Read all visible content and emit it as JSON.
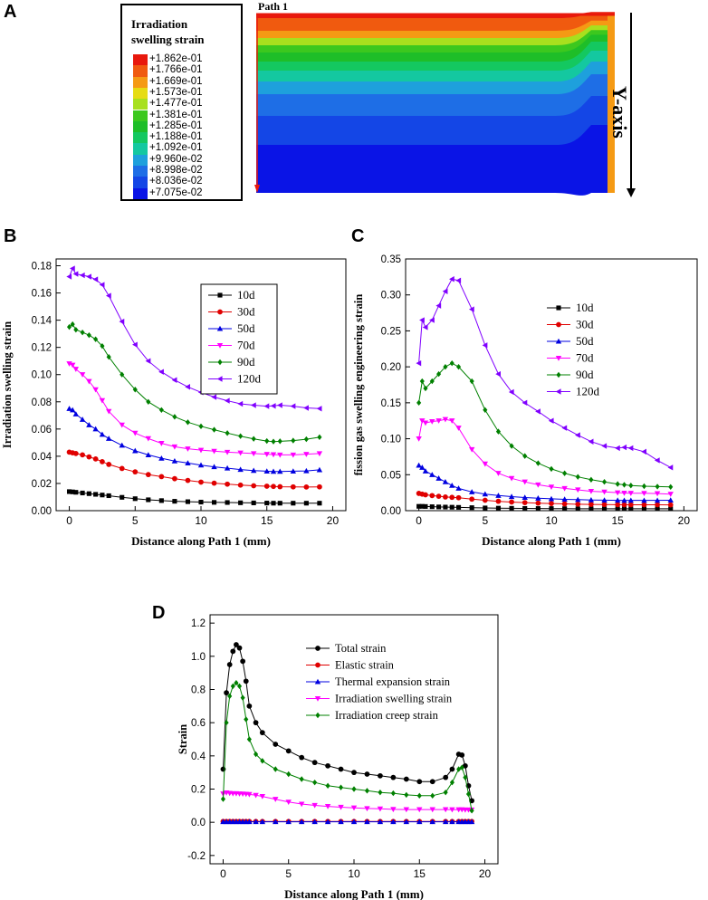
{
  "panels": {
    "a": "A",
    "b": "B",
    "c": "C",
    "d": "D"
  },
  "panelA": {
    "legend_title_line1": "Irradiation",
    "legend_title_line2": "swelling strain",
    "legend_values": [
      "+1.862e-01",
      "+1.766e-01",
      "+1.669e-01",
      "+1.573e-01",
      "+1.477e-01",
      "+1.381e-01",
      "+1.285e-01",
      "+1.188e-01",
      "+1.092e-01",
      "+9.960e-02",
      "+8.998e-02",
      "+8.036e-02",
      "+7.075e-02"
    ],
    "legend_colors": [
      "#e8180c",
      "#f05a0f",
      "#f59a14",
      "#e6dc14",
      "#a8e01e",
      "#3cc81e",
      "#1ebe28",
      "#14c860",
      "#14c8a0",
      "#1ea0dc",
      "#1e6ee6",
      "#1446e6",
      "#0a14e6"
    ],
    "path_label": "Path 1",
    "axis_label": "Y-axis"
  },
  "chart_data": [
    {
      "id": "B",
      "type": "line",
      "xlabel": "Distance along Path 1 (mm)",
      "ylabel": "Irradiation swelling strain",
      "xlim": [
        -1,
        21
      ],
      "ylim": [
        0,
        0.185
      ],
      "xticks": [
        0,
        5,
        10,
        15,
        20
      ],
      "yticks": [
        0.0,
        0.02,
        0.04,
        0.06,
        0.08,
        0.1,
        0.12,
        0.14,
        0.16,
        0.18
      ],
      "ytick_labels": [
        "0.00",
        "0.02",
        "0.04",
        "0.06",
        "0.08",
        "0.10",
        "0.12",
        "0.14",
        "0.16",
        "0.18"
      ],
      "x": [
        0,
        0.25,
        0.5,
        1,
        1.5,
        2,
        2.5,
        3,
        4,
        5,
        6,
        7,
        8,
        9,
        10,
        11,
        12,
        13,
        14,
        15,
        15.5,
        16,
        17,
        18,
        19
      ],
      "series": [
        {
          "name": "10d",
          "color": "#000000",
          "marker": "square",
          "values": [
            0.014,
            0.0138,
            0.0135,
            0.013,
            0.0125,
            0.012,
            0.0115,
            0.011,
            0.0098,
            0.0088,
            0.008,
            0.0074,
            0.0069,
            0.0066,
            0.0063,
            0.0061,
            0.006,
            0.0058,
            0.0057,
            0.0056,
            0.0055,
            0.0055,
            0.0055,
            0.0055,
            0.0055
          ]
        },
        {
          "name": "30d",
          "color": "#e00000",
          "marker": "circle",
          "values": [
            0.043,
            0.0425,
            0.042,
            0.041,
            0.0395,
            0.038,
            0.036,
            0.034,
            0.031,
            0.0285,
            0.0265,
            0.025,
            0.0235,
            0.0222,
            0.021,
            0.0202,
            0.0195,
            0.0188,
            0.0183,
            0.018,
            0.0178,
            0.0176,
            0.0175,
            0.0174,
            0.0175
          ]
        },
        {
          "name": "50d",
          "color": "#0000e0",
          "marker": "triangle-up",
          "values": [
            0.075,
            0.074,
            0.071,
            0.067,
            0.063,
            0.06,
            0.056,
            0.053,
            0.048,
            0.044,
            0.041,
            0.0385,
            0.0365,
            0.035,
            0.0335,
            0.0322,
            0.0312,
            0.0302,
            0.0295,
            0.029,
            0.0288,
            0.0288,
            0.029,
            0.0292,
            0.03
          ]
        },
        {
          "name": "70d",
          "color": "#ff00ff",
          "marker": "triangle-down",
          "values": [
            0.108,
            0.107,
            0.104,
            0.1,
            0.095,
            0.089,
            0.081,
            0.073,
            0.063,
            0.057,
            0.053,
            0.0495,
            0.047,
            0.0455,
            0.0445,
            0.0437,
            0.043,
            0.0425,
            0.042,
            0.0415,
            0.0412,
            0.041,
            0.041,
            0.0415,
            0.042
          ]
        },
        {
          "name": "90d",
          "color": "#008000",
          "marker": "diamond",
          "values": [
            0.135,
            0.137,
            0.133,
            0.131,
            0.129,
            0.126,
            0.121,
            0.113,
            0.1,
            0.089,
            0.08,
            0.074,
            0.069,
            0.065,
            0.062,
            0.0595,
            0.057,
            0.0548,
            0.0528,
            0.0512,
            0.0508,
            0.051,
            0.0515,
            0.0525,
            0.054
          ]
        },
        {
          "name": "120d",
          "color": "#8000ff",
          "marker": "triangle-left",
          "values": [
            0.172,
            0.178,
            0.174,
            0.173,
            0.172,
            0.17,
            0.166,
            0.158,
            0.139,
            0.122,
            0.11,
            0.102,
            0.096,
            0.091,
            0.087,
            0.0835,
            0.0808,
            0.0785,
            0.0775,
            0.0768,
            0.077,
            0.0775,
            0.0768,
            0.0755,
            0.075
          ]
        }
      ]
    },
    {
      "id": "C",
      "type": "line",
      "xlabel": "Distance along Path 1 (mm)",
      "ylabel": "fission gas swelling engineering strain",
      "xlim": [
        -1,
        21
      ],
      "ylim": [
        0,
        0.35
      ],
      "xticks": [
        0,
        5,
        10,
        15,
        20
      ],
      "yticks": [
        0.0,
        0.05,
        0.1,
        0.15,
        0.2,
        0.25,
        0.3,
        0.35
      ],
      "ytick_labels": [
        "0.00",
        "0.05",
        "0.10",
        "0.15",
        "0.20",
        "0.25",
        "0.30",
        "0.35"
      ],
      "x": [
        0,
        0.25,
        0.5,
        1,
        1.5,
        2,
        2.5,
        3,
        4,
        5,
        6,
        7,
        8,
        9,
        10,
        11,
        12,
        13,
        14,
        15,
        15.5,
        16,
        17,
        18,
        19
      ],
      "series": [
        {
          "name": "10d",
          "color": "#000000",
          "marker": "square",
          "values": [
            0.006,
            0.006,
            0.0058,
            0.0055,
            0.0052,
            0.005,
            0.0048,
            0.0046,
            0.0042,
            0.0038,
            0.0035,
            0.0033,
            0.0031,
            0.003,
            0.0029,
            0.0028,
            0.0027,
            0.0027,
            0.0026,
            0.0026,
            0.0026,
            0.0026,
            0.0026,
            0.0026,
            0.0026
          ]
        },
        {
          "name": "30d",
          "color": "#e00000",
          "marker": "circle",
          "values": [
            0.024,
            0.023,
            0.022,
            0.021,
            0.02,
            0.019,
            0.0185,
            0.018,
            0.016,
            0.0145,
            0.013,
            0.012,
            0.0112,
            0.0105,
            0.0099,
            0.0094,
            0.009,
            0.0087,
            0.0085,
            0.0083,
            0.0082,
            0.0082,
            0.0082,
            0.0082,
            0.008
          ]
        },
        {
          "name": "50d",
          "color": "#0000e0",
          "marker": "triangle-up",
          "values": [
            0.063,
            0.06,
            0.055,
            0.05,
            0.045,
            0.04,
            0.035,
            0.031,
            0.026,
            0.023,
            0.021,
            0.0195,
            0.0183,
            0.0173,
            0.0165,
            0.0158,
            0.0153,
            0.0149,
            0.0146,
            0.0144,
            0.0143,
            0.0143,
            0.0143,
            0.0143,
            0.0145
          ]
        },
        {
          "name": "70d",
          "color": "#ff00ff",
          "marker": "triangle-down",
          "values": [
            0.1,
            0.125,
            0.122,
            0.124,
            0.125,
            0.127,
            0.125,
            0.115,
            0.085,
            0.065,
            0.052,
            0.045,
            0.04,
            0.036,
            0.033,
            0.031,
            0.029,
            0.027,
            0.026,
            0.025,
            0.0245,
            0.0243,
            0.0242,
            0.0238,
            0.023
          ]
        },
        {
          "name": "90d",
          "color": "#008000",
          "marker": "diamond",
          "values": [
            0.15,
            0.18,
            0.17,
            0.18,
            0.19,
            0.2,
            0.205,
            0.2,
            0.18,
            0.14,
            0.11,
            0.09,
            0.076,
            0.066,
            0.058,
            0.052,
            0.047,
            0.043,
            0.04,
            0.037,
            0.036,
            0.035,
            0.034,
            0.0335,
            0.033
          ]
        },
        {
          "name": "120d",
          "color": "#8000ff",
          "marker": "triangle-left",
          "values": [
            0.205,
            0.265,
            0.255,
            0.265,
            0.285,
            0.305,
            0.322,
            0.32,
            0.28,
            0.23,
            0.19,
            0.165,
            0.15,
            0.138,
            0.125,
            0.115,
            0.105,
            0.096,
            0.09,
            0.087,
            0.088,
            0.087,
            0.082,
            0.07,
            0.06
          ]
        }
      ]
    },
    {
      "id": "D",
      "type": "line",
      "xlabel": "Distance along Path 1 (mm)",
      "ylabel": "Strain",
      "xlim": [
        -1,
        21
      ],
      "ylim": [
        -0.25,
        1.25
      ],
      "xticks": [
        0,
        5,
        10,
        15,
        20
      ],
      "yticks": [
        -0.2,
        0.0,
        0.2,
        0.4,
        0.6,
        0.8,
        1.0,
        1.2
      ],
      "ytick_labels": [
        "-0.2",
        "0.0",
        "0.2",
        "0.4",
        "0.6",
        "0.8",
        "1.0",
        "1.2"
      ],
      "x": [
        0,
        0.25,
        0.5,
        0.75,
        1,
        1.25,
        1.5,
        1.75,
        2,
        2.5,
        3,
        4,
        5,
        6,
        7,
        8,
        9,
        10,
        11,
        12,
        13,
        14,
        15,
        16,
        17,
        17.5,
        18,
        18.25,
        18.5,
        18.75,
        19
      ],
      "series": [
        {
          "name": "Total strain",
          "color": "#000000",
          "marker": "circle",
          "values": [
            0.32,
            0.78,
            0.95,
            1.03,
            1.07,
            1.05,
            0.97,
            0.85,
            0.7,
            0.6,
            0.54,
            0.47,
            0.43,
            0.39,
            0.36,
            0.34,
            0.32,
            0.3,
            0.29,
            0.28,
            0.27,
            0.26,
            0.245,
            0.245,
            0.27,
            0.32,
            0.41,
            0.405,
            0.34,
            0.22,
            0.13
          ]
        },
        {
          "name": "Elastic strain",
          "color": "#e00000",
          "marker": "circle",
          "values": [
            0.005,
            0.005,
            0.005,
            0.005,
            0.005,
            0.005,
            0.005,
            0.005,
            0.005,
            0.005,
            0.005,
            0.005,
            0.005,
            0.005,
            0.005,
            0.005,
            0.005,
            0.005,
            0.005,
            0.005,
            0.005,
            0.005,
            0.005,
            0.005,
            0.005,
            0.005,
            0.005,
            0.005,
            0.005,
            0.005,
            0.005
          ]
        },
        {
          "name": "Thermal expansion strain",
          "color": "#0000e0",
          "marker": "triangle-up",
          "values": [
            0.003,
            0.003,
            0.003,
            0.003,
            0.003,
            0.003,
            0.003,
            0.003,
            0.003,
            0.003,
            0.003,
            0.003,
            0.003,
            0.003,
            0.003,
            0.003,
            0.003,
            0.003,
            0.003,
            0.003,
            0.003,
            0.003,
            0.003,
            0.003,
            0.003,
            0.003,
            0.003,
            0.003,
            0.003,
            0.003,
            0.003
          ]
        },
        {
          "name": "Irradiation swelling strain",
          "color": "#ff00ff",
          "marker": "triangle-down",
          "values": [
            0.172,
            0.178,
            0.175,
            0.173,
            0.173,
            0.172,
            0.171,
            0.17,
            0.168,
            0.163,
            0.156,
            0.139,
            0.122,
            0.11,
            0.102,
            0.096,
            0.091,
            0.087,
            0.083,
            0.081,
            0.078,
            0.077,
            0.077,
            0.077,
            0.077,
            0.076,
            0.076,
            0.076,
            0.075,
            0.075,
            0.075
          ]
        },
        {
          "name": "Irradiation creep strain",
          "color": "#008000",
          "marker": "diamond",
          "values": [
            0.14,
            0.6,
            0.76,
            0.82,
            0.84,
            0.82,
            0.75,
            0.62,
            0.5,
            0.41,
            0.37,
            0.32,
            0.29,
            0.26,
            0.24,
            0.22,
            0.21,
            0.2,
            0.19,
            0.18,
            0.175,
            0.165,
            0.16,
            0.16,
            0.18,
            0.24,
            0.32,
            0.33,
            0.27,
            0.17,
            0.07
          ]
        }
      ]
    }
  ]
}
